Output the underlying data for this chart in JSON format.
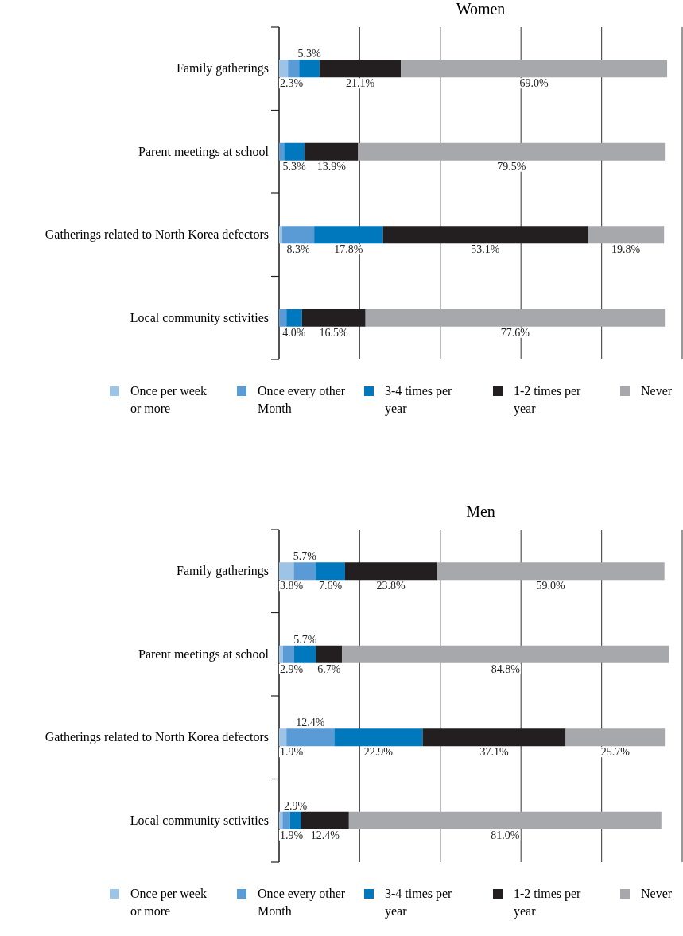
{
  "chart_data": [
    {
      "type": "bar",
      "orientation": "horizontal",
      "stacked": true,
      "title": "Women",
      "categories": [
        "Family gatherings",
        "Parent meetings at school",
        "Gatherings related to North Korea defectors",
        "Local community sctivities"
      ],
      "series": [
        {
          "name": "Once per week or more",
          "color": "#9dc3e6",
          "values": [
            2.3,
            null,
            0.8,
            null
          ],
          "value_labels": [
            "2.3%",
            null,
            null,
            null
          ]
        },
        {
          "name": "Once every other Month",
          "color": "#5b9bd5",
          "values": [
            2.9,
            1.3,
            8.3,
            1.9
          ],
          "value_labels": [
            null,
            null,
            "8.3%",
            null
          ]
        },
        {
          "name": "3-4 times per year",
          "color": "#0078be",
          "values": [
            5.3,
            5.3,
            17.8,
            4.0
          ],
          "value_labels": [
            "5.3%",
            "5.3%",
            "17.8%",
            "4.0%"
          ]
        },
        {
          "name": "1-2 times per year",
          "color": "#231f20",
          "values": [
            21.1,
            13.9,
            53.1,
            16.5
          ],
          "value_labels": [
            "21.1%",
            "13.9%",
            "53.1%",
            "16.5%"
          ]
        },
        {
          "name": "Never",
          "color": "#a7a8ab",
          "values": [
            69.0,
            79.5,
            19.8,
            77.6
          ],
          "value_labels": [
            "69.0%",
            "79.5%",
            "19.8%",
            "77.6%"
          ]
        }
      ],
      "xlim": [
        0,
        104.5
      ],
      "xticks": [
        {
          "value": 0,
          "label": null
        },
        {
          "value": 20.9,
          "label": null
        },
        {
          "value": 41.8,
          "label": null
        },
        {
          "value": 62.7,
          "label": null
        },
        {
          "value": 83.6,
          "label": null
        },
        {
          "value": 104.5,
          "label": null
        }
      ],
      "grid": "x",
      "legend": "bottom",
      "tick_labels": "y"
    },
    {
      "type": "bar",
      "orientation": "horizontal",
      "stacked": true,
      "title": "Men",
      "categories": [
        "Family gatherings",
        "Parent meetings at school",
        "Gatherings related to North Korea defectors",
        "Local community sctivities"
      ],
      "series": [
        {
          "name": "Once per week or more",
          "color": "#9dc3e6",
          "values": [
            3.8,
            1.0,
            1.9,
            0.9
          ],
          "value_labels": [
            "3.8%",
            null,
            "1.9%",
            null
          ]
        },
        {
          "name": "Once every other Month",
          "color": "#5b9bd5",
          "values": [
            5.7,
            2.9,
            12.4,
            1.9
          ],
          "value_labels": [
            "5.7%",
            "2.9%",
            "12.4%",
            "1.9%"
          ]
        },
        {
          "name": "3-4 times per year",
          "color": "#0078be",
          "values": [
            7.6,
            5.7,
            22.9,
            2.9
          ],
          "value_labels": [
            "7.6%",
            "5.7%",
            "22.9%",
            "2.9%"
          ]
        },
        {
          "name": "1-2 times per year",
          "color": "#231f20",
          "values": [
            23.8,
            6.7,
            37.1,
            12.4
          ],
          "value_labels": [
            "23.8%",
            "6.7%",
            "37.1%",
            "12.4%"
          ]
        },
        {
          "name": "Never",
          "color": "#a7a8ab",
          "values": [
            59.0,
            84.8,
            25.7,
            81.0
          ],
          "value_labels": [
            "59.0%",
            "84.8%",
            "25.7%",
            "81.0%"
          ]
        }
      ],
      "xlim": [
        0,
        104.5
      ],
      "xticks": [
        {
          "value": 0,
          "label": null
        },
        {
          "value": 20.9,
          "label": null
        },
        {
          "value": 41.8,
          "label": null
        },
        {
          "value": 62.7,
          "label": null
        },
        {
          "value": 83.6,
          "label": null
        },
        {
          "value": 104.5,
          "label": null
        }
      ],
      "grid": "x",
      "legend": "bottom",
      "tick_labels": "y"
    }
  ]
}
